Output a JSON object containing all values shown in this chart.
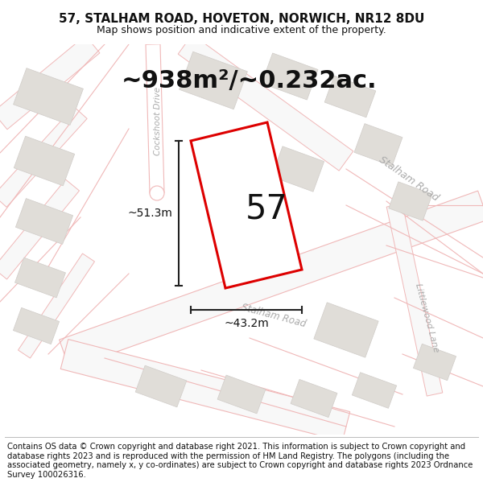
{
  "title": "57, STALHAM ROAD, HOVETON, NORWICH, NR12 8DU",
  "subtitle": "Map shows position and indicative extent of the property.",
  "area_label": "~938m²/~0.232ac.",
  "plot_number": "57",
  "dim_vertical": "~51.3m",
  "dim_horizontal": "~43.2m",
  "footer": "Contains OS data © Crown copyright and database right 2021. This information is subject to Crown copyright and database rights 2023 and is reproduced with the permission of HM Land Registry. The polygons (including the associated geometry, namely x, y co-ordinates) are subject to Crown copyright and database rights 2023 Ordnance Survey 100026316.",
  "map_bg": "#ffffff",
  "road_line_color": "#f0b8b8",
  "road_fill_color": "#f5e8e8",
  "building_color": "#e0ddd8",
  "building_edge": "#d0ccc8",
  "plot_outline_color": "#dd0000",
  "dim_line_color": "#222222",
  "text_color": "#111111",
  "road_label_color": "#aaaaaa",
  "title_fontsize": 11,
  "subtitle_fontsize": 9,
  "area_fontsize": 22,
  "plot_num_fontsize": 30,
  "dim_fontsize": 10,
  "footer_fontsize": 7.2,
  "cockshoot_drive_label": "Cockshoot Drive",
  "stalham_road_label": "Stalham Road",
  "littlewood_lane_label": "Littlewood Lane"
}
